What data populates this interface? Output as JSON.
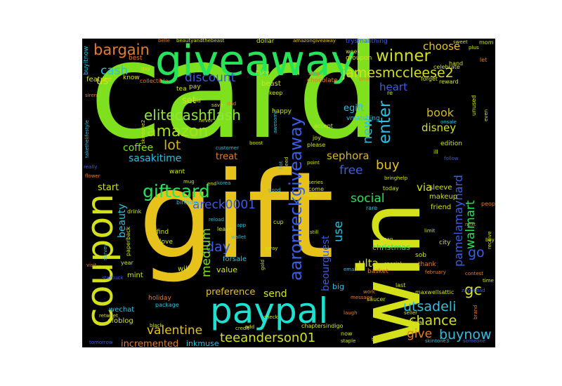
{
  "words": {
    "card": {
      "text": "card",
      "color": "#7fe01e"
    },
    "gift": {
      "text": "gift",
      "color": "#e6c21a"
    },
    "giveaway": {
      "text": "giveaway",
      "color": "#27e35a"
    },
    "win": {
      "text": "win",
      "color": "#d4e01a"
    },
    "paypal": {
      "text": "paypal",
      "color": "#1ce0d0"
    },
    "coupon": {
      "text": "coupon",
      "color": "#d4e01a"
    },
    "aaronreckgiveaway": {
      "text": "aaronreckgiveaway",
      "color": "#3a5ee8"
    },
    "giftcard": {
      "text": "giftcard",
      "color": "#27e35a"
    },
    "amazon": {
      "text": "amazon",
      "color": "#a8e019"
    },
    "elitecashflash": {
      "text": "elitecashflash",
      "color": "#8fe63a"
    },
    "winner": {
      "text": "winner",
      "color": "#d4e01a"
    },
    "bargain": {
      "text": "bargain",
      "color": "#e67c28"
    },
    "jamesmccleese2": {
      "text": "jamesmccleese2",
      "color": "#d4e01a"
    },
    "cash": {
      "text": "cash",
      "color": "#2bc0e3"
    },
    "discount": {
      "text": "discount",
      "color": "#3a5ee8"
    },
    "enter": {
      "text": "enter",
      "color": "#2bc0e3"
    },
    "new": {
      "text": "new",
      "color": "#2bc0e3"
    },
    "heart": {
      "text": "heart",
      "color": "#3a5ee8"
    },
    "egift": {
      "text": "egift",
      "color": "#2bc0e3"
    },
    "book": {
      "text": "book",
      "color": "#d4b81a"
    },
    "disney": {
      "text": "disney",
      "color": "#d4e01a"
    },
    "lot": {
      "text": "lot",
      "color": "#d4b81a"
    },
    "coffee": {
      "text": "coffee",
      "color": "#7fe01e"
    },
    "sasakitime": {
      "text": "sasakitime",
      "color": "#2bc0e3"
    },
    "buy": {
      "text": "buy",
      "color": "#e6c21a"
    },
    "free": {
      "text": "free",
      "color": "#3a5ee8"
    },
    "sephora": {
      "text": "sephora",
      "color": "#d4b81a"
    },
    "walmart": {
      "text": "walmart",
      "color": "#27e35a"
    },
    "pamelamaynard": {
      "text": "pamelamaynard",
      "color": "#3a5ee8"
    },
    "areck0001": {
      "text": "areck0001",
      "color": "#3a5ee8"
    },
    "social": {
      "text": "social",
      "color": "#27e35a"
    },
    "ulta": {
      "text": "ulta",
      "color": "#d4e01a"
    },
    "go": {
      "text": "go",
      "color": "#3a5ee8"
    },
    "gc": {
      "text": "gc",
      "color": "#d4e01a"
    },
    "utsadeli": {
      "text": "utsadeli",
      "color": "#2bc0e3"
    },
    "chance": {
      "text": "chance",
      "color": "#d4e01a"
    },
    "buynow": {
      "text": "buynow",
      "color": "#2bc0e3"
    },
    "give": {
      "text": "give",
      "color": "#e67c28"
    },
    "teeanderson01": {
      "text": "teeanderson01",
      "color": "#d4e01a"
    },
    "valentine": {
      "text": "valentine",
      "color": "#e6c21a"
    },
    "incremented": {
      "text": "incremented",
      "color": "#e67c28"
    },
    "day": {
      "text": "day",
      "color": "#3a5ee8"
    },
    "medium": {
      "text": "medium",
      "color": "#7fe01e"
    },
    "beauty": {
      "text": "beauty",
      "color": "#2bc0e3"
    },
    "start": {
      "text": "start",
      "color": "#d4e01a"
    },
    "us": {
      "text": "us",
      "color": "#d4e01a"
    },
    "set": {
      "text": "set",
      "color": "#d4e01a"
    },
    "treat": {
      "text": "treat",
      "color": "#e67c28"
    },
    "via": {
      "text": "via",
      "color": "#d4e01a"
    },
    "choose": {
      "text": "choose",
      "color": "#e6c21a"
    },
    "beourguest": {
      "text": "beourguest",
      "color": "#3a5ee8"
    },
    "use": {
      "text": "use",
      "color": "#2bc0e3"
    },
    "send": {
      "text": "send",
      "color": "#d4e01a"
    },
    "preference": {
      "text": "preference",
      "color": "#e6c21a"
    },
    "christmas": {
      "text": "christmas",
      "color": "#27e35a"
    },
    "big": {
      "text": "big",
      "color": "#2bc0e3"
    },
    "makeup": {
      "text": "makeup",
      "color": "#d4e01a"
    },
    "sleeve": {
      "text": "sleeve",
      "color": "#d4e01a"
    },
    "friend": {
      "text": "friend",
      "color": "#d4e01a"
    },
    "china": {
      "text": "china",
      "color": "#d4e01a"
    },
    "inkmuse": {
      "text": "inkmuse",
      "color": "#2bc0e3"
    },
    "value": {
      "text": "value",
      "color": "#d4e01a"
    },
    "forsale": {
      "text": "forsale",
      "color": "#2bc0e3"
    },
    "will": {
      "text": "will",
      "color": "#d4e01a"
    },
    "mint": {
      "text": "mint",
      "color": "#d4e01a"
    },
    "wechat": {
      "text": "wechat",
      "color": "#2bc0e3"
    },
    "cfoblog": {
      "text": "cfoblog",
      "color": "#d4e01a"
    },
    "holiday": {
      "text": "holiday",
      "color": "#e67c28"
    },
    "feature": {
      "text": "feature",
      "color": "#d4e01a"
    },
    "best": {
      "text": "best",
      "color": "#e67c28"
    },
    "know": {
      "text": "know",
      "color": "#d4e01a"
    },
    "collectible": {
      "text": "collectible",
      "color": "#e67c28"
    },
    "tea": {
      "text": "tea",
      "color": "#d4e01a"
    },
    "pay": {
      "text": "pay",
      "color": "#d4e01a"
    },
    "dollar": {
      "text": "dollar",
      "color": "#d4e01a"
    },
    "trysmallthing": {
      "text": "trysmallthing",
      "color": "#3a5ee8"
    },
    "beautyandthebeast": {
      "text": "beautyandthebeast",
      "color": "#d4e01a"
    },
    "amazongiveaway": {
      "text": "amazongiveaway",
      "color": "#e6c21a"
    },
    "belle": {
      "text": "belle",
      "color": "#e67c28"
    },
    "mom": {
      "text": "mom",
      "color": "#d4e01a"
    },
    "buyitnow": {
      "text": "buyitnow",
      "color": "#2bc0e3"
    },
    "groupon": {
      "text": "groupon",
      "color": "#d4e01a"
    },
    "week": {
      "text": "week",
      "color": "#d4e01a"
    },
    "one": {
      "text": "one",
      "color": "#e67c28"
    },
    "beast": {
      "text": "beast",
      "color": "#d4e01a"
    },
    "take": {
      "text": "take",
      "color": "#d4e01a"
    },
    "stop": {
      "text": "stop",
      "color": "#e67c28"
    },
    "chocolate": {
      "text": "chocolate",
      "color": "#e67c28"
    },
    "forget": {
      "text": "forget",
      "color": "#d4e01a"
    },
    "reward": {
      "text": "reward",
      "color": "#d4e01a"
    },
    "celebrate": {
      "text": "celebrate",
      "color": "#d4e01a"
    },
    "hand": {
      "text": "hand",
      "color": "#d4e01a"
    },
    "let": {
      "text": "let",
      "color": "#e67c28"
    },
    "sweet": {
      "text": "sweet",
      "color": "#d4e01a"
    },
    "plus": {
      "text": "plus",
      "color": "#d4e01a"
    },
    "unused": {
      "text": "unused",
      "color": "#d4e01a"
    },
    "edition": {
      "text": "edition",
      "color": "#d4e01a"
    },
    "onsale": {
      "text": "onsale",
      "color": "#2bc0e3"
    },
    "ill": {
      "text": "ill",
      "color": "#d4e01a"
    },
    "follow": {
      "text": "follow",
      "color": "#3a5ee8"
    },
    "even": {
      "text": "even",
      "color": "#d4e01a"
    },
    "people": {
      "text": "people",
      "color": "#e67c28"
    },
    "happy": {
      "text": "happy",
      "color": "#d4e01a"
    },
    "accept": {
      "text": "accept",
      "color": "#d4e01a"
    },
    "joy": {
      "text": "joy",
      "color": "#d4e01a"
    },
    "please": {
      "text": "please",
      "color": "#d4e01a"
    },
    "point": {
      "text": "point",
      "color": "#d4e01a"
    },
    "help": {
      "text": "help",
      "color": "#d4e01a"
    },
    "bring": {
      "text": "bring",
      "color": "#d4e01a"
    },
    "today": {
      "text": "today",
      "color": "#d4e01a"
    },
    "come": {
      "text": "come",
      "color": "#d4e01a"
    },
    "rare": {
      "text": "rare",
      "color": "#2bc0e3"
    },
    "money": {
      "text": "money",
      "color": "#d4e01a"
    },
    "limit": {
      "text": "limit",
      "color": "#d4e01a"
    },
    "still": {
      "text": "still",
      "color": "#d4e01a"
    },
    "japan": {
      "text": "japan",
      "color": "#d4e01a"
    },
    "city": {
      "text": "city",
      "color": "#d4e01a"
    },
    "sob": {
      "text": "sob",
      "color": "#d4e01a"
    },
    "thank": {
      "text": "thank",
      "color": "#e67c28"
    },
    "special": {
      "text": "special",
      "color": "#d4e01a"
    },
    "basket": {
      "text": "basket",
      "color": "#e67c28"
    },
    "email": {
      "text": "email",
      "color": "#2bc0e3"
    },
    "last": {
      "text": "last",
      "color": "#d4e01a"
    },
    "maxwellsattic": {
      "text": "maxwellsattic",
      "color": "#d4e01a"
    },
    "contest": {
      "text": "contest",
      "color": "#e67c28"
    },
    "time": {
      "text": "time",
      "color": "#d4e01a"
    },
    "brand": {
      "text": "brand",
      "color": "#e67c28"
    },
    "seller": {
      "text": "seller",
      "color": "#d4e01a"
    },
    "saucer": {
      "text": "saucer",
      "color": "#d4e01a"
    },
    "message": {
      "text": "message",
      "color": "#e67c28"
    },
    "work": {
      "text": "work",
      "color": "#e67c28"
    },
    "laugh": {
      "text": "laugh",
      "color": "#e67c28"
    },
    "now": {
      "text": "now",
      "color": "#d4e01a"
    },
    "staple": {
      "text": "staple",
      "color": "#d4e01a"
    },
    "skintone3": {
      "text": "skintone3",
      "color": "#2bc0e3"
    },
    "someone": {
      "text": "someone",
      "color": "#3a5ee8"
    },
    "chaptersindigo": {
      "text": "chaptersindigo",
      "color": "#d4e01a"
    },
    "credit": {
      "text": "credit",
      "color": "#d4e01a"
    },
    "add": {
      "text": "add",
      "color": "#d4e01a"
    },
    "check": {
      "text": "check",
      "color": "#d4e01a"
    },
    "black": {
      "text": "black",
      "color": "#d4e01a"
    },
    "retweet": {
      "text": "retweet",
      "color": "#d4e01a"
    },
    "tomorrow": {
      "text": "tomorrow",
      "color": "#3a5ee8"
    },
    "package": {
      "text": "package",
      "color": "#2bc0e3"
    },
    "starbuck": {
      "text": "starbuck",
      "color": "#3a5ee8"
    },
    "visit": {
      "text": "visit",
      "color": "#e67c28"
    },
    "survey": {
      "text": "survey",
      "color": "#2bc0e3"
    },
    "year": {
      "text": "year",
      "color": "#d4e01a"
    },
    "paperback": {
      "text": "paperback",
      "color": "#d4e01a"
    },
    "drink": {
      "text": "drink",
      "color": "#d4e01a"
    },
    "birthday": {
      "text": "birthday",
      "color": "#2bc0e3"
    },
    "find": {
      "text": "find",
      "color": "#d4e01a"
    },
    "love": {
      "text": "love",
      "color": "#d4e01a"
    },
    "leave": {
      "text": "leave",
      "color": "#d4e01a"
    },
    "app": {
      "text": "app",
      "color": "#2bc0e3"
    },
    "reload": {
      "text": "reload",
      "color": "#2bc0e3"
    },
    "wallet": {
      "text": "wallet",
      "color": "#2bc0e3"
    },
    "away": {
      "text": "away",
      "color": "#d4e01a"
    },
    "gold": {
      "text": "gold",
      "color": "#d4e01a"
    },
    "cup": {
      "text": "cup",
      "color": "#d4e01a"
    },
    "mug": {
      "text": "mug",
      "color": "#d4e01a"
    },
    "end": {
      "text": "end",
      "color": "#d4e01a"
    },
    "korea": {
      "text": "korea",
      "color": "#2bc0e3"
    },
    "good": {
      "text": "good",
      "color": "#2bc0e3"
    },
    "series": {
      "text": "series",
      "color": "#d4e01a"
    },
    "want": {
      "text": "want",
      "color": "#d4e01a"
    },
    "customer": {
      "text": "customer",
      "color": "#2bc0e3"
    },
    "boost": {
      "text": "boost",
      "color": "#d4e01a"
    },
    "never": {
      "text": "never",
      "color": "#d4e01a"
    },
    "old": {
      "text": "old",
      "color": "#d4e01a"
    },
    "dad": {
      "text": "dad",
      "color": "#e67c28"
    },
    "save": {
      "text": "save",
      "color": "#d4e01a"
    },
    "awesome": {
      "text": "awesome",
      "color": "#2bc0e3"
    },
    "keep": {
      "text": "keep",
      "color": "#d4e01a"
    },
    "re": {
      "text": "re",
      "color": "#d4e01a"
    },
    "vmatching": {
      "text": "vmatching",
      "color": "#2bc0e3"
    },
    "siren": {
      "text": "siren",
      "color": "#e67c28"
    },
    "really": {
      "text": "really",
      "color": "#3a5ee8"
    },
    "flower": {
      "text": "flower",
      "color": "#e67c28"
    },
    "takethelifestyle": {
      "text": "takethelifestyle",
      "color": "#2bc0e3"
    },
    "skintone2": {
      "text": "skintone2",
      "color": "#d4e01a"
    },
    "tell": {
      "text": "tell",
      "color": "#d4e01a"
    },
    "next": {
      "text": "next",
      "color": "#e67c28"
    },
    "receive": {
      "text": "receive",
      "color": "#d4e01a"
    },
    "bay": {
      "text": "bay",
      "color": "#d4e01a"
    },
    "february": {
      "text": "february",
      "color": "#e67c28"
    },
    "zayncdad": {
      "text": "zayncdad",
      "color": "#3a5ee8"
    },
    "guy": {
      "text": "guy",
      "color": "#d4e01a"
    },
    "hot": {
      "text": "hot",
      "color": "#2bc0e3"
    },
    "need": {
      "text": "need",
      "color": "#d4e01a"
    }
  }
}
